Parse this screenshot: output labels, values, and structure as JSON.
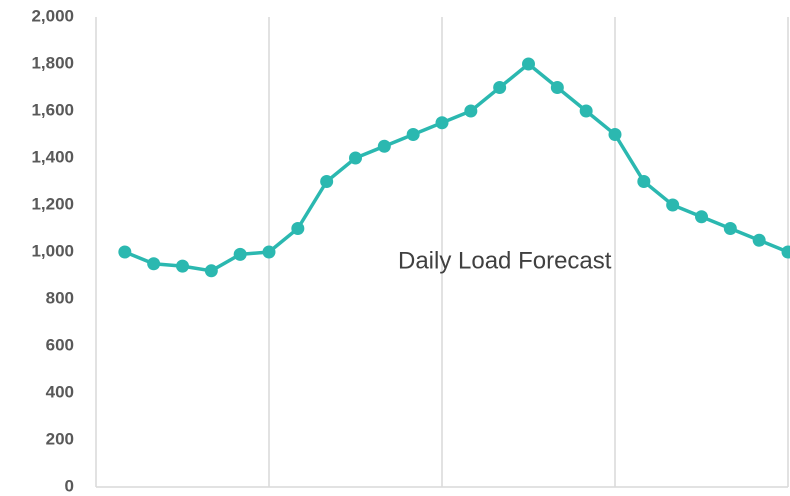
{
  "chart_data": {
    "type": "line",
    "x": [
      1,
      2,
      3,
      4,
      5,
      6,
      7,
      8,
      9,
      10,
      11,
      12,
      13,
      14,
      15,
      16,
      17,
      18,
      19,
      20,
      21,
      22,
      23,
      24
    ],
    "series": [
      {
        "name": "Daily Load Forecast",
        "color": "#2bb8b0",
        "values": [
          1000,
          950,
          940,
          920,
          990,
          1000,
          1100,
          1300,
          1400,
          1450,
          1500,
          1550,
          1600,
          1700,
          1800,
          1700,
          1600,
          1500,
          1300,
          1200,
          1150,
          1100,
          1050,
          1000
        ]
      }
    ],
    "xlim": [
      0,
      24
    ],
    "xticks": [
      0,
      6,
      12,
      18,
      24
    ],
    "ylim": [
      0,
      2000
    ],
    "yticks": [
      0,
      200,
      400,
      600,
      800,
      {
        "value": 1000,
        "label": "1,000"
      },
      {
        "value": 1200,
        "label": "1,200"
      },
      {
        "value": 1400,
        "label": "1,400"
      },
      {
        "value": 1600,
        "label": "1,600"
      },
      {
        "value": 1800,
        "label": "1,800"
      },
      {
        "value": 2000,
        "label": "2,000"
      }
    ],
    "grid": "x"
  }
}
